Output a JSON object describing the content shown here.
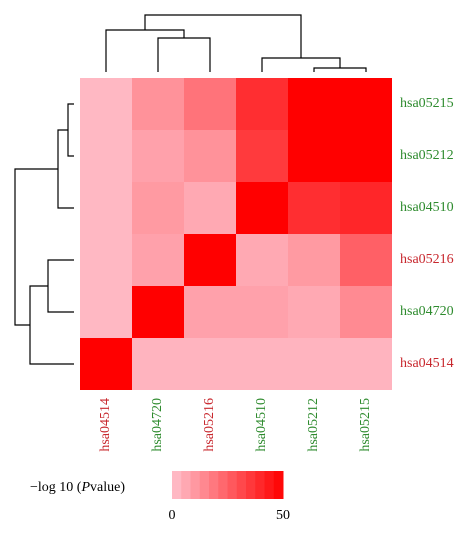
{
  "chart_data": {
    "type": "heatmap",
    "rows": [
      "hsa05215",
      "hsa05212",
      "hsa04510",
      "hsa05216",
      "hsa04720",
      "hsa04514"
    ],
    "columns": [
      "hsa04514",
      "hsa04720",
      "hsa05216",
      "hsa04510",
      "hsa05212",
      "hsa05215"
    ],
    "row_label_colors": [
      "#2e8b2e",
      "#2e8b2e",
      "#2e8b2e",
      "#c8282e",
      "#2e8b2e",
      "#c8282e"
    ],
    "column_label_colors": [
      "#c8282e",
      "#2e8b2e",
      "#c8282e",
      "#2e8b2e",
      "#2e8b2e",
      "#2e8b2e"
    ],
    "values": [
      [
        2,
        12,
        20,
        38,
        50,
        50
      ],
      [
        2,
        8,
        12,
        35,
        50,
        50
      ],
      [
        2,
        10,
        6,
        50,
        38,
        40
      ],
      [
        2,
        8,
        50,
        6,
        10,
        25
      ],
      [
        2,
        50,
        8,
        8,
        6,
        14
      ],
      [
        50,
        3,
        3,
        3,
        3,
        3
      ]
    ],
    "colormap": [
      "#ffc0cb",
      "#ff0000"
    ],
    "colorbar": {
      "title": [
        "−log 10 (",
        "P",
        "value)"
      ],
      "range": [
        0,
        50
      ],
      "ticks": [
        0,
        50
      ]
    }
  }
}
